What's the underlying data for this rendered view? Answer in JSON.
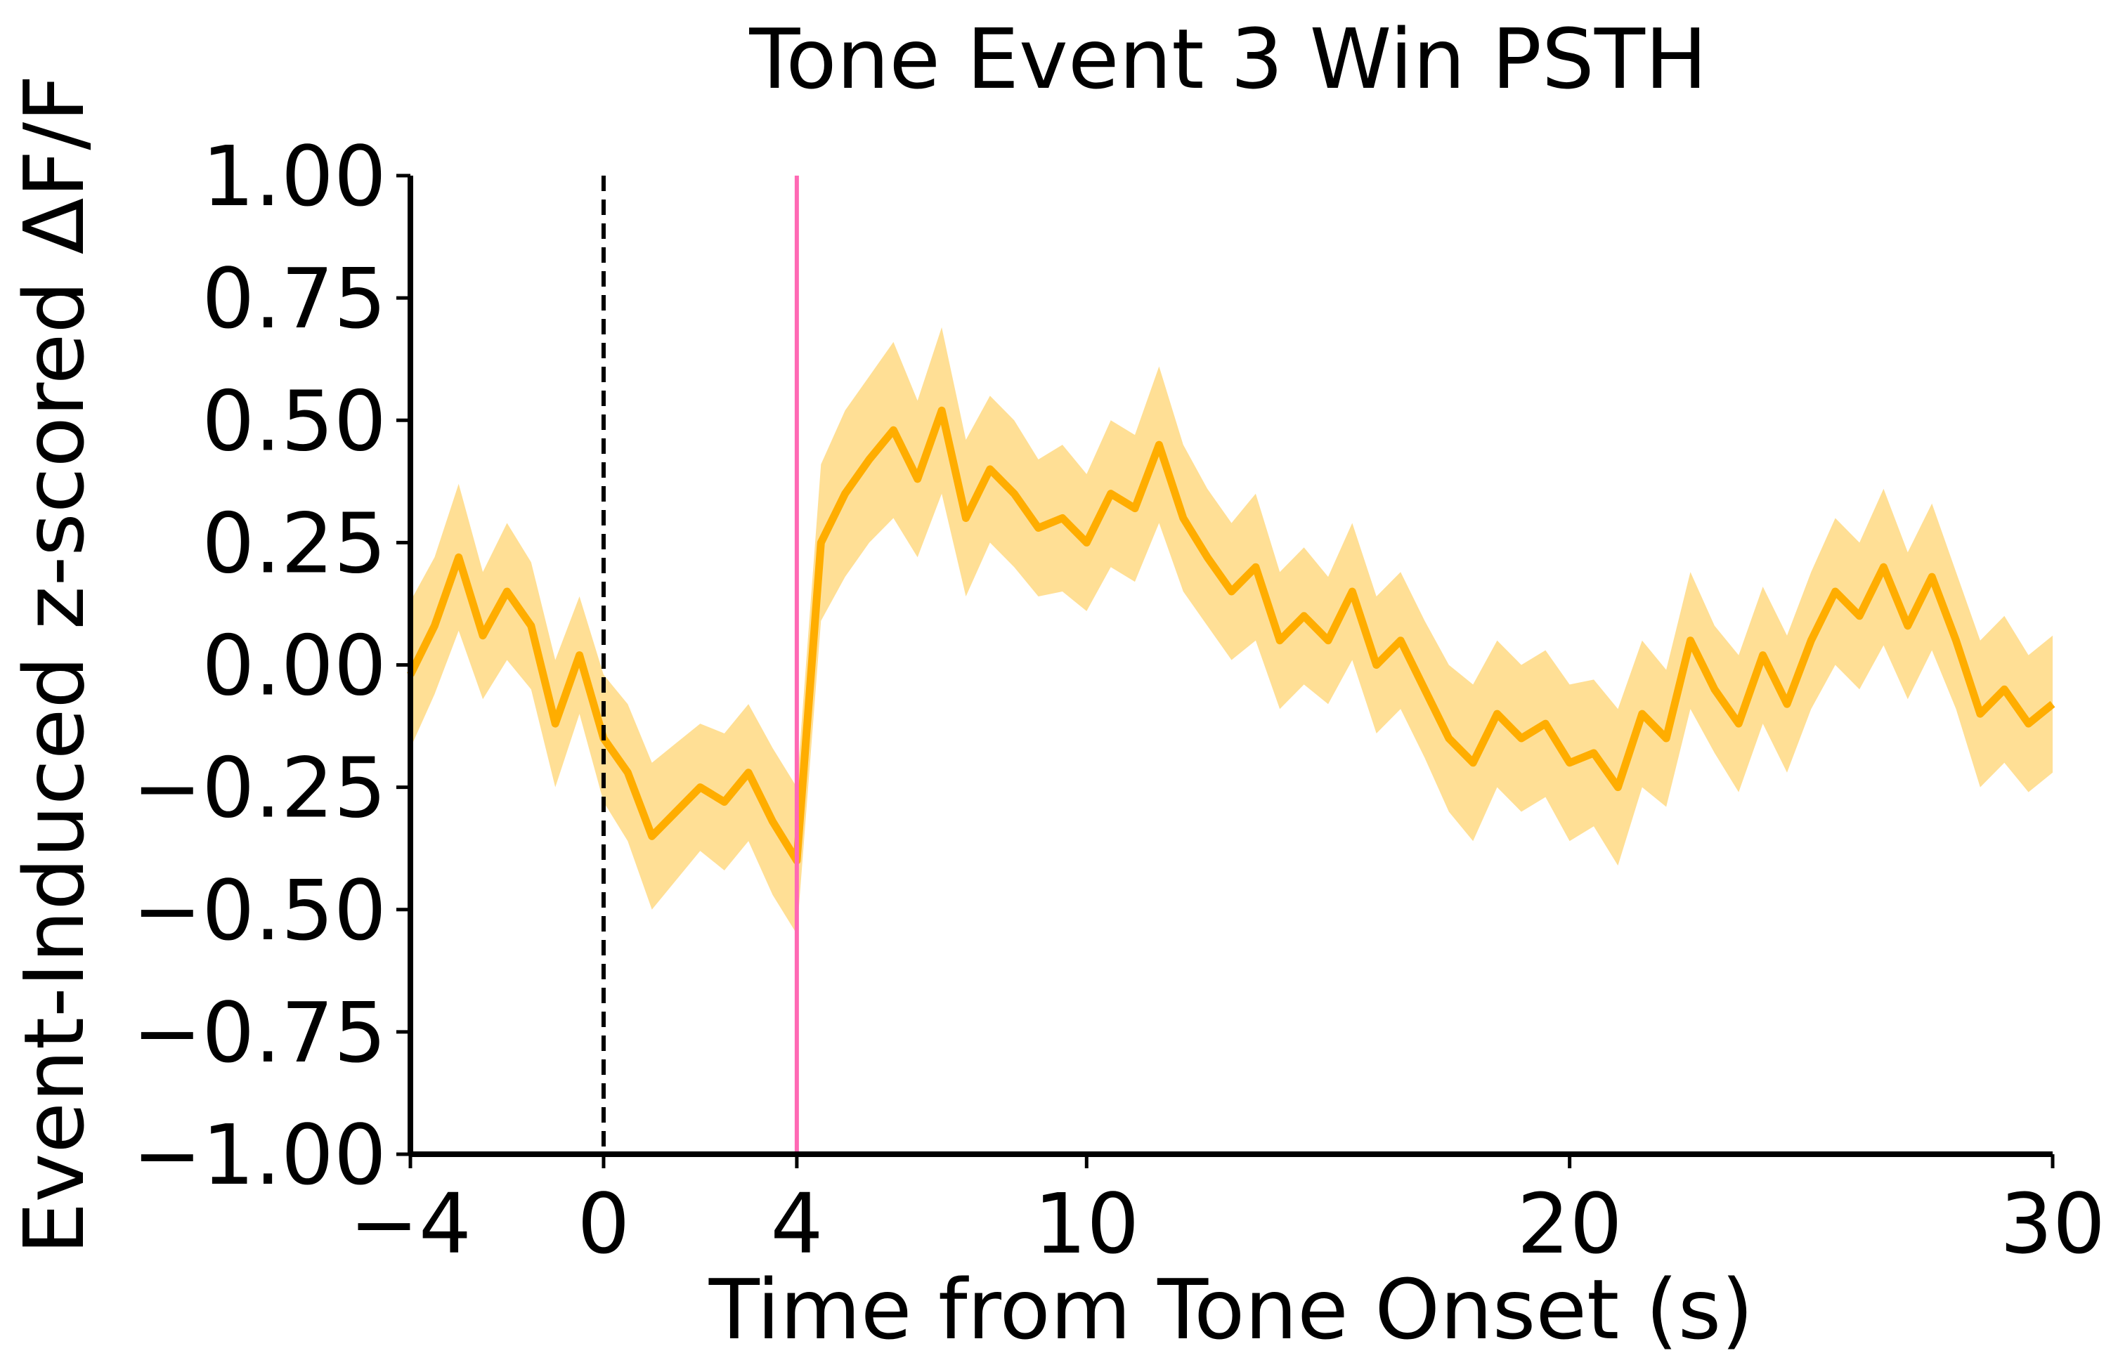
{
  "chart_data": {
    "type": "line",
    "title": "Tone Event 3 Win PSTH",
    "xlabel": "Time from Tone Onset (s)",
    "ylabel": "Event-Induced z-scored ΔF/F",
    "xlim": [
      -4,
      30
    ],
    "ylim": [
      -1.0,
      1.0
    ],
    "xticks": [
      -4,
      0,
      4,
      10,
      20,
      30
    ],
    "xtick_labels": [
      "−4",
      "0",
      "4",
      "10",
      "20",
      "30"
    ],
    "yticks": [
      -1.0,
      -0.75,
      -0.5,
      -0.25,
      0.0,
      0.25,
      0.5,
      0.75,
      1.0
    ],
    "ytick_labels": [
      "−1.00",
      "−0.75",
      "−0.50",
      "−0.25",
      "0.00",
      "0.25",
      "0.50",
      "0.75",
      "1.00"
    ],
    "grid": false,
    "legend": "none",
    "vlines": [
      {
        "x": 0,
        "style": "dashed",
        "color": "#000000"
      },
      {
        "x": 4,
        "style": "solid",
        "color": "#ff69b4"
      }
    ],
    "series": [
      {
        "color": "#ffad00",
        "band_color": "#ffd77a",
        "x": [
          -4,
          -3.5,
          -3,
          -2.5,
          -2,
          -1.5,
          -1,
          -0.5,
          0,
          0.5,
          1,
          1.5,
          2,
          2.5,
          3,
          3.5,
          4,
          4.5,
          5,
          5.5,
          6,
          6.5,
          7,
          7.5,
          8,
          8.5,
          9,
          9.5,
          10,
          10.5,
          11,
          11.5,
          12,
          12.5,
          13,
          13.5,
          14,
          14.5,
          15,
          15.5,
          16,
          16.5,
          17,
          17.5,
          18,
          18.5,
          19,
          19.5,
          20,
          20.5,
          21,
          21.5,
          22,
          22.5,
          23,
          23.5,
          24,
          24.5,
          25,
          25.5,
          26,
          26.5,
          27,
          27.5,
          28,
          28.5,
          29,
          29.5,
          30
        ],
        "mean": [
          -0.02,
          0.08,
          0.22,
          0.06,
          0.15,
          0.08,
          -0.12,
          0.02,
          -0.15,
          -0.22,
          -0.35,
          -0.3,
          -0.25,
          -0.28,
          -0.22,
          -0.32,
          -0.4,
          0.25,
          0.35,
          0.42,
          0.48,
          0.38,
          0.52,
          0.3,
          0.4,
          0.35,
          0.28,
          0.3,
          0.25,
          0.35,
          0.32,
          0.45,
          0.3,
          0.22,
          0.15,
          0.2,
          0.05,
          0.1,
          0.05,
          0.15,
          0.0,
          0.05,
          -0.05,
          -0.15,
          -0.2,
          -0.1,
          -0.15,
          -0.12,
          -0.2,
          -0.18,
          -0.25,
          -0.1,
          -0.15,
          0.05,
          -0.05,
          -0.12,
          0.02,
          -0.08,
          0.05,
          0.15,
          0.1,
          0.2,
          0.08,
          0.18,
          0.05,
          -0.1,
          -0.05,
          -0.12,
          -0.08
        ],
        "sem": [
          0.15,
          0.14,
          0.15,
          0.13,
          0.14,
          0.13,
          0.13,
          0.12,
          0.13,
          0.14,
          0.15,
          0.14,
          0.13,
          0.14,
          0.14,
          0.15,
          0.15,
          0.16,
          0.17,
          0.17,
          0.18,
          0.16,
          0.17,
          0.16,
          0.15,
          0.15,
          0.14,
          0.15,
          0.14,
          0.15,
          0.15,
          0.16,
          0.15,
          0.14,
          0.14,
          0.15,
          0.14,
          0.14,
          0.13,
          0.14,
          0.14,
          0.14,
          0.14,
          0.15,
          0.16,
          0.15,
          0.15,
          0.15,
          0.16,
          0.15,
          0.16,
          0.15,
          0.14,
          0.14,
          0.13,
          0.14,
          0.14,
          0.14,
          0.14,
          0.15,
          0.15,
          0.16,
          0.15,
          0.15,
          0.14,
          0.15,
          0.15,
          0.14,
          0.14
        ]
      }
    ]
  }
}
